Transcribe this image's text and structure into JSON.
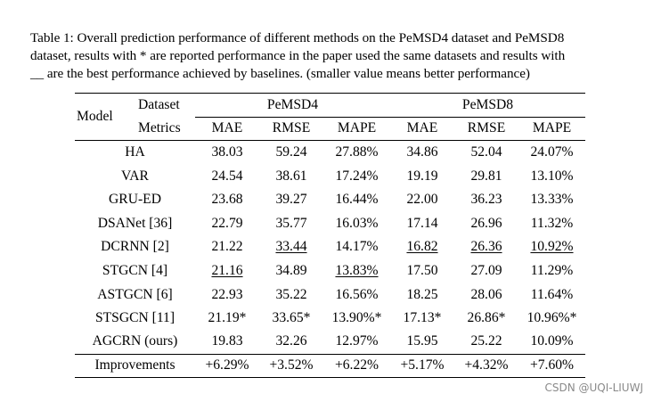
{
  "caption": {
    "line1": "Table 1: Overall prediction performance of different methods on the PeMSD4 dataset and PeMSD8",
    "line2": "dataset, results with * are reported performance in the paper used the same datasets and results with",
    "line3": "__ are the best performance achieved by baselines. (smaller value means better performance)"
  },
  "table": {
    "model_header": "Model",
    "dataset_header": "Dataset",
    "metrics_header": "Metrics",
    "datasets": [
      "PeMSD4",
      "PeMSD8"
    ],
    "metrics": [
      "MAE",
      "RMSE",
      "MAPE",
      "MAE",
      "RMSE",
      "MAPE"
    ],
    "rows": [
      {
        "model": "HA",
        "values": [
          "38.03",
          "59.24",
          "27.88%",
          "34.86",
          "52.04",
          "24.07%"
        ]
      },
      {
        "model": "VAR",
        "values": [
          "24.54",
          "38.61",
          "17.24%",
          "19.19",
          "29.81",
          "13.10%"
        ]
      },
      {
        "model": "GRU-ED",
        "values": [
          "23.68",
          "39.27",
          "16.44%",
          "22.00",
          "36.23",
          "13.33%"
        ]
      },
      {
        "model": "DSANet [36]",
        "values": [
          "22.79",
          "35.77",
          "16.03%",
          "17.14",
          "26.96",
          "11.32%"
        ]
      },
      {
        "model": "DCRNN [2]",
        "values": [
          "21.22",
          "33.44",
          "14.17%",
          "16.82",
          "26.36",
          "10.92%"
        ],
        "underlined": [
          1,
          3,
          4,
          5
        ]
      },
      {
        "model": "STGCN [4]",
        "values": [
          "21.16",
          "34.89",
          "13.83%",
          "17.50",
          "27.09",
          "11.29%"
        ],
        "underlined": [
          0,
          2
        ]
      },
      {
        "model": "ASTGCN [6]",
        "values": [
          "22.93",
          "35.22",
          "16.56%",
          "18.25",
          "28.06",
          "11.64%"
        ]
      },
      {
        "model": "STSGCN [11]",
        "values": [
          "21.19*",
          "33.65*",
          "13.90%*",
          "17.13*",
          "26.86*",
          "10.96%*"
        ]
      },
      {
        "model": "AGCRN (ours)",
        "values": [
          "19.83",
          "32.26",
          "12.97%",
          "15.95",
          "25.22",
          "10.09%"
        ]
      },
      {
        "model": "Improvements",
        "values": [
          "+6.29%",
          "+3.52%",
          "+6.22%",
          "+5.17%",
          "+4.32%",
          "+7.60%"
        ]
      }
    ]
  },
  "watermark": "CSDN @UQI-LIUWJ"
}
